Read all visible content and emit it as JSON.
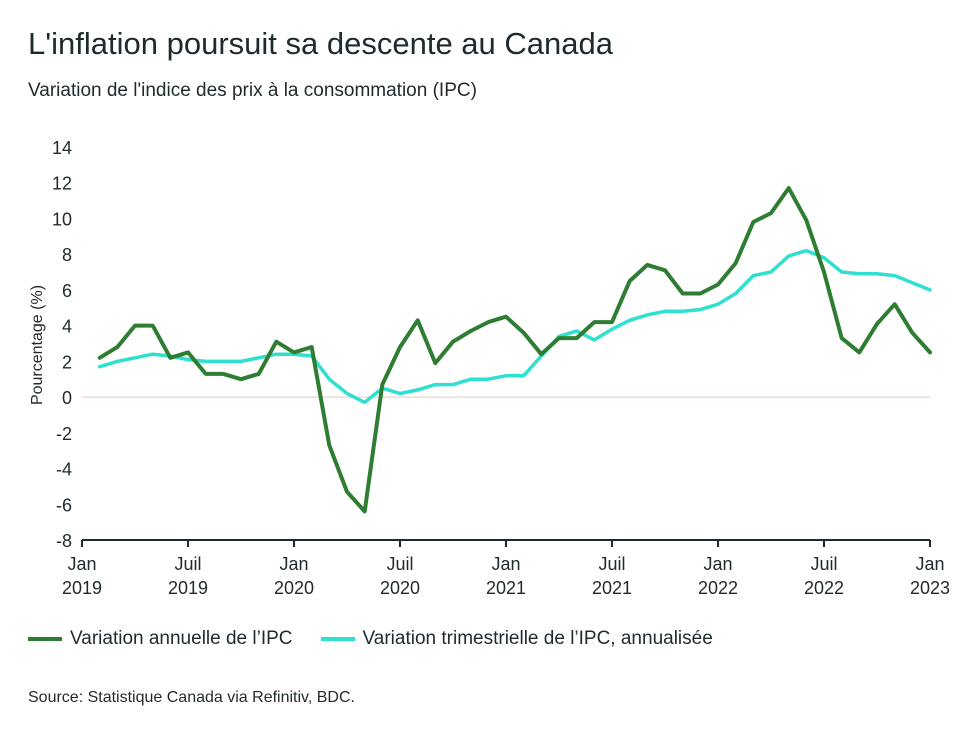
{
  "chart_data": {
    "type": "line",
    "title": "L'inflation poursuit sa descente au Canada",
    "subtitle": "Variation de l'indice des prix à la consommation (IPC)",
    "ylabel": "Pourcentage (%)",
    "ylim": [
      -8,
      14
    ],
    "yticks": [
      -8,
      -6,
      -4,
      -2,
      0,
      2,
      4,
      6,
      8,
      10,
      12,
      14
    ],
    "x_range": [
      "2019-01",
      "2023-01"
    ],
    "xticks": [
      {
        "month": 0,
        "line1": "Jan",
        "line2": "2019"
      },
      {
        "month": 6,
        "line1": "Juil",
        "line2": "2019"
      },
      {
        "month": 12,
        "line1": "Jan",
        "line2": "2020"
      },
      {
        "month": 18,
        "line1": "Juil",
        "line2": "2020"
      },
      {
        "month": 24,
        "line1": "Jan",
        "line2": "2021"
      },
      {
        "month": 30,
        "line1": "Juil",
        "line2": "2021"
      },
      {
        "month": 36,
        "line1": "Jan",
        "line2": "2022"
      },
      {
        "month": 42,
        "line1": "Juil",
        "line2": "2022"
      },
      {
        "month": 48,
        "line1": "Jan",
        "line2": "2023"
      }
    ],
    "x": [
      "2019-02",
      "2019-03",
      "2019-04",
      "2019-05",
      "2019-06",
      "2019-07",
      "2019-08",
      "2019-09",
      "2019-10",
      "2019-11",
      "2019-12",
      "2020-01",
      "2020-02",
      "2020-03",
      "2020-04",
      "2020-05",
      "2020-06",
      "2020-07",
      "2020-08",
      "2020-09",
      "2020-10",
      "2020-11",
      "2020-12",
      "2021-01",
      "2021-02",
      "2021-03",
      "2021-04",
      "2021-05",
      "2021-06",
      "2021-07",
      "2021-08",
      "2021-09",
      "2021-10",
      "2021-11",
      "2021-12",
      "2022-01",
      "2022-02",
      "2022-03",
      "2022-04",
      "2022-05",
      "2022-06",
      "2022-07",
      "2022-08",
      "2022-09",
      "2022-10",
      "2022-11",
      "2022-12",
      "2023-01"
    ],
    "series": [
      {
        "name": "Variation annuelle de l’IPC",
        "color": "#2e7d32",
        "values": [
          2.2,
          2.8,
          4.0,
          4.0,
          2.2,
          2.5,
          1.3,
          1.3,
          1.0,
          1.3,
          3.1,
          2.5,
          2.8,
          -2.7,
          -5.3,
          -6.4,
          0.7,
          2.8,
          4.3,
          1.9,
          3.1,
          3.7,
          4.2,
          4.5,
          3.6,
          2.4,
          3.3,
          3.3,
          4.2,
          4.2,
          6.5,
          7.4,
          7.1,
          5.8,
          5.8,
          6.3,
          7.5,
          9.8,
          10.3,
          11.7,
          9.9,
          7.0,
          3.3,
          2.5,
          4.1,
          5.2,
          3.6,
          2.5
        ]
      },
      {
        "name": "Variation trimestrielle de l’IPC, annualisée",
        "color": "#2ee0cf",
        "values": [
          1.7,
          2.0,
          2.2,
          2.4,
          2.3,
          2.1,
          2.0,
          2.0,
          2.0,
          2.2,
          2.4,
          2.4,
          2.3,
          1.0,
          0.2,
          -0.3,
          0.5,
          0.2,
          0.4,
          0.7,
          0.7,
          1.0,
          1.0,
          1.2,
          1.2,
          2.3,
          3.4,
          3.7,
          3.2,
          3.8,
          4.3,
          4.6,
          4.8,
          4.8,
          4.9,
          5.2,
          5.8,
          6.8,
          7.0,
          7.9,
          8.2,
          7.8,
          7.0,
          6.9,
          6.9,
          6.8,
          6.4,
          6.0
        ]
      }
    ],
    "grid": false,
    "legend_position": "bottom"
  },
  "source": "Source: Statistique Canada via Refinitiv, BDC."
}
